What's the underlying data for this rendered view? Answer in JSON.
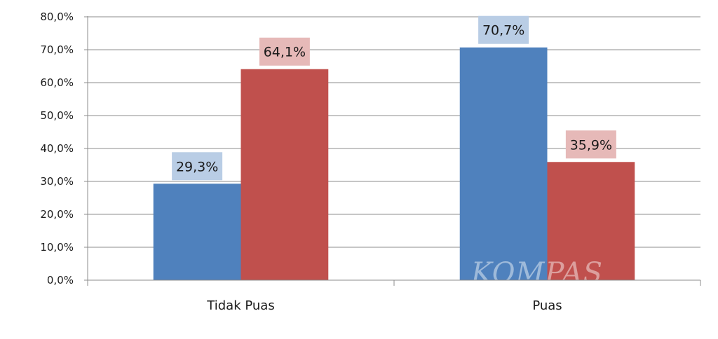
{
  "chart_data": {
    "type": "bar",
    "categories": [
      "Tidak Puas",
      "Puas"
    ],
    "series": [
      {
        "color": "#4f81bd",
        "label_bg": "#b9cde5",
        "values": [
          29.3,
          70.7
        ],
        "labels": [
          "29,3%",
          "70,7%"
        ]
      },
      {
        "color": "#c0504d",
        "label_bg": "#e6b9b8",
        "values": [
          64.1,
          35.9
        ],
        "labels": [
          "64,1%",
          "35,9%"
        ]
      }
    ],
    "ylim": [
      0,
      80
    ],
    "y_ticks": [
      0,
      10,
      20,
      30,
      40,
      50,
      60,
      70,
      80
    ],
    "y_tick_labels": [
      "0,0%",
      "10,0%",
      "20,0%",
      "30,0%",
      "40,0%",
      "50,0%",
      "60,0%",
      "70,0%",
      "80,0%"
    ],
    "grid": true,
    "legend": "none",
    "title": "",
    "xlabel": "",
    "ylabel": ""
  },
  "watermark": "KOMPAS"
}
